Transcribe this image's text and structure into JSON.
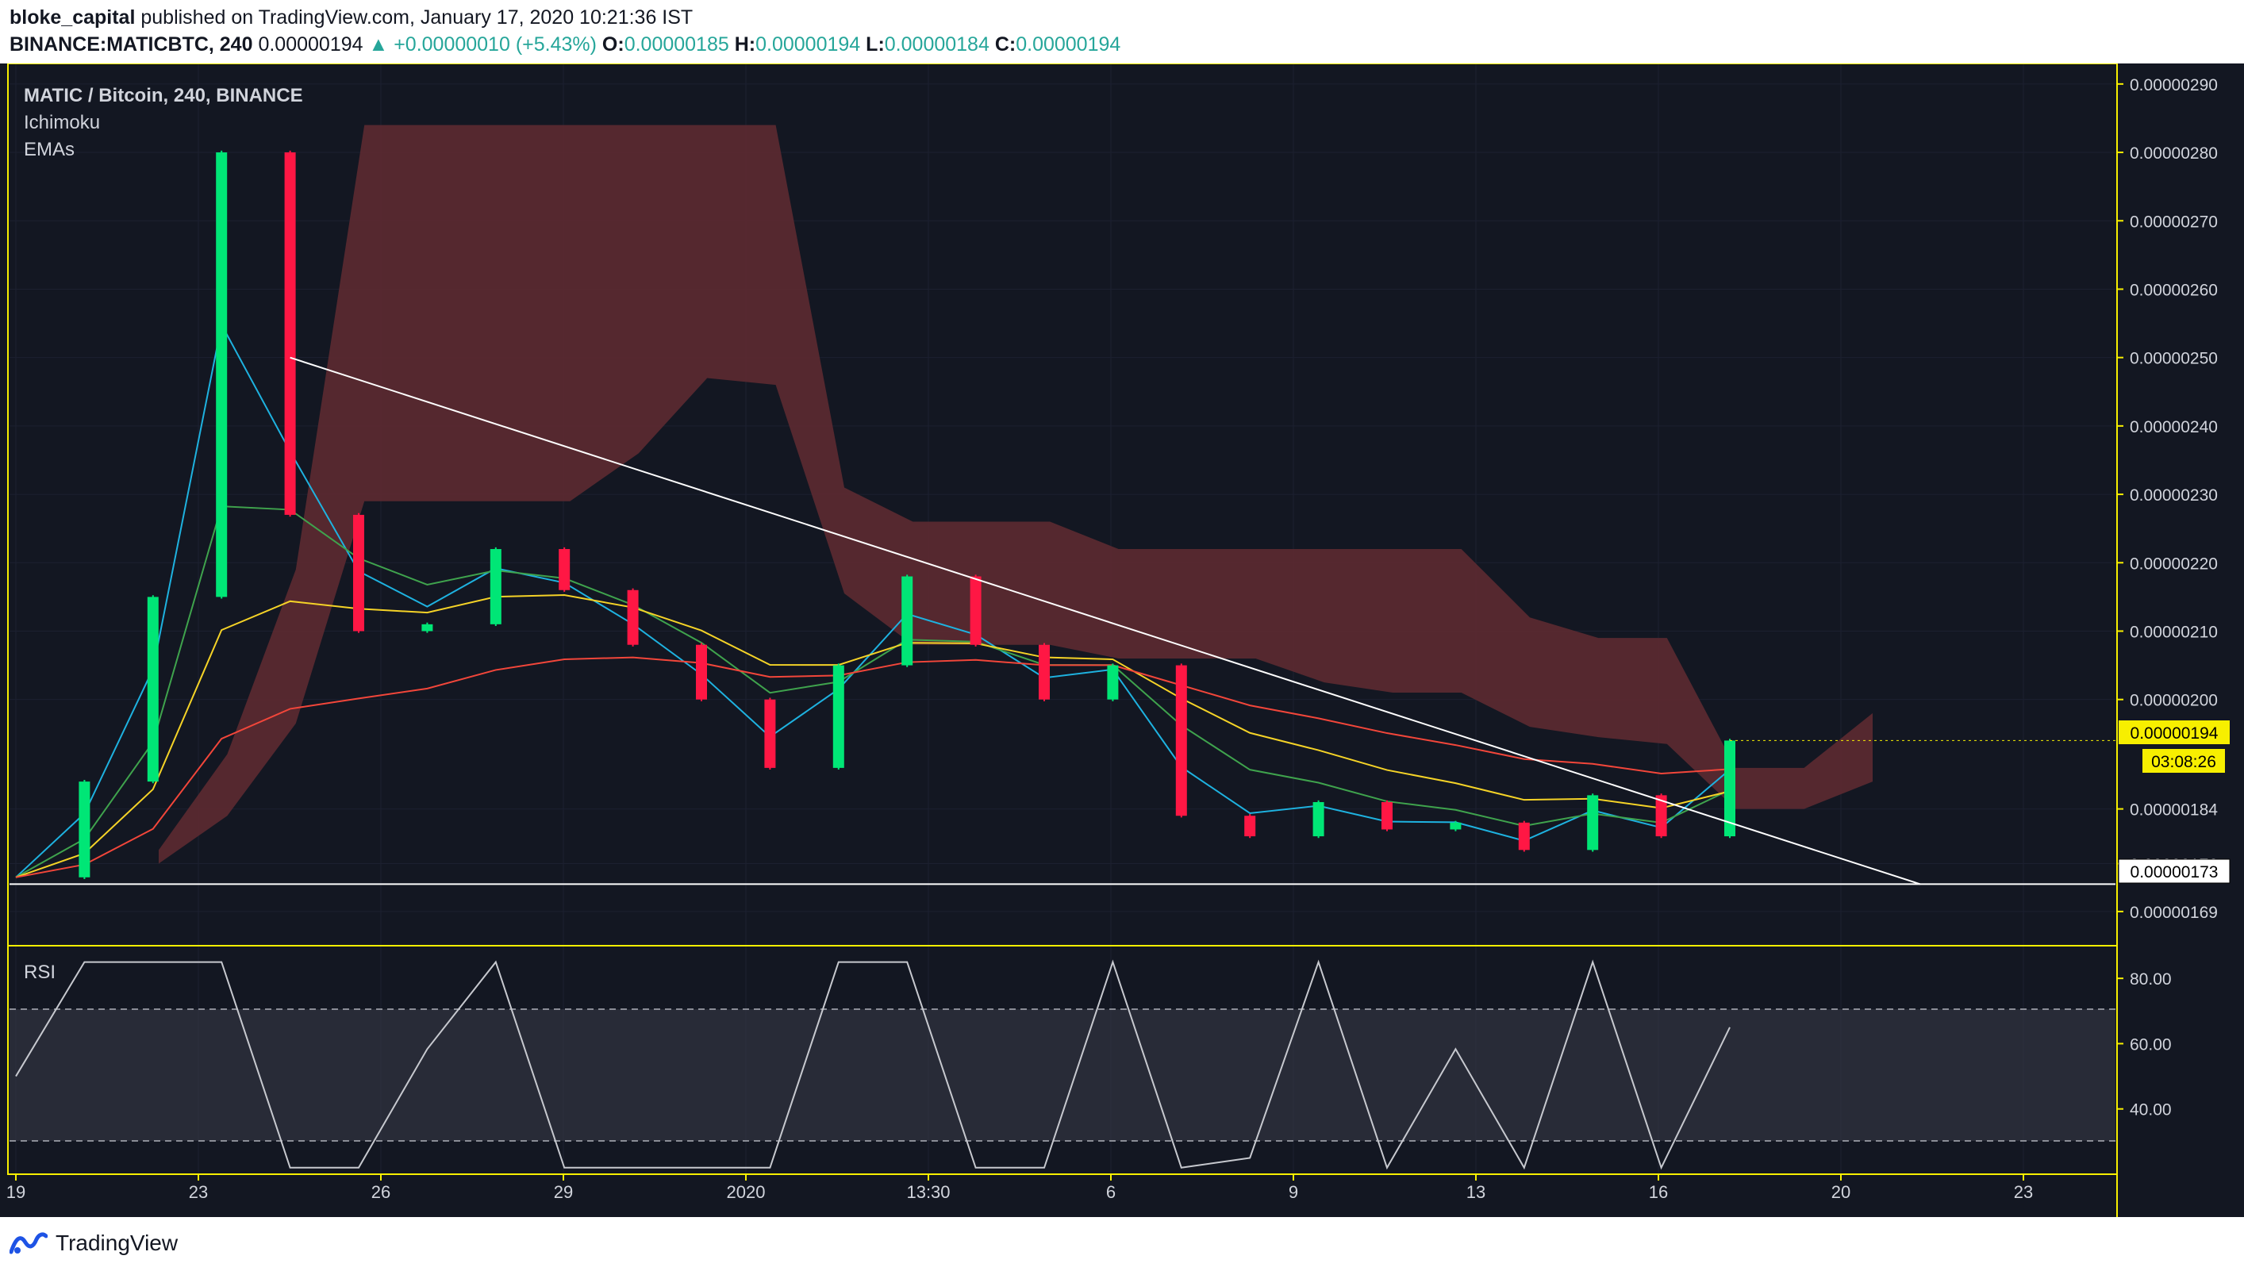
{
  "header": {
    "author": "bloke_capital",
    "published_text": "published on TradingView.com, January 17, 2020 10:21:36 IST",
    "symbol": "BINANCE:MATICBTC, 240",
    "last": "0.00000194",
    "change": "▲ +0.00000010 (+5.43%)",
    "o_label": "O:",
    "o_value": "0.00000185",
    "h_label": "H:",
    "h_value": "0.00000194",
    "l_label": "L:",
    "l_value": "0.00000184",
    "c_label": "C:",
    "c_value": "0.00000194"
  },
  "legend": {
    "title": "MATIC / Bitcoin, 240, BINANCE",
    "ichimoku": "Ichimoku",
    "emas": "EMAs",
    "rsi": "RSI"
  },
  "price_scale": {
    "ticks": [
      "0.00000290",
      "0.00000280",
      "0.00000270",
      "0.00000260",
      "0.00000250",
      "0.00000240",
      "0.00000230",
      "0.00000220",
      "0.00000210",
      "0.00000200",
      "0.00000184",
      "0.00000176",
      "0.00000169"
    ],
    "current_price": "0.00000194",
    "countdown": "03:08:26",
    "support_label": "0.00000173"
  },
  "rsi_scale": {
    "ticks": [
      "80.00",
      "60.00",
      "40.00"
    ],
    "upper_band": 70,
    "lower_band": 30
  },
  "time_axis": [
    "19",
    "23",
    "26",
    "29",
    "2020",
    "13:30",
    "6",
    "9",
    "13",
    "16",
    "20",
    "23"
  ],
  "footer": {
    "brand": "TradingView"
  },
  "colors": {
    "background": "#131722",
    "bull": "#00e676",
    "bear": "#ff1744",
    "cloud": "#5d2a31",
    "ema_fast": "#1eb2e0",
    "ema_mid": "#3fa34d",
    "ema_slow": "#f5d327",
    "ema_200": "#f2463a",
    "trendline": "#ffffff",
    "highlight": "#f7ef00"
  },
  "chart_data": {
    "type": "candlestick",
    "title": "MATIC / Bitcoin, 240, BINANCE",
    "interval": "240",
    "x": [
      "19",
      "23",
      "26",
      "29",
      "2020",
      "13:30",
      "6",
      "9",
      "13",
      "16",
      "20",
      "23"
    ],
    "ylim": [
      1.64e-06,
      2.93e-06
    ],
    "y_scale": "linear",
    "price_points": [
      {
        "x": "19",
        "price": 1.74e-06
      },
      {
        "x": "20",
        "price": 1.88e-06
      },
      {
        "x": "21",
        "price": 2.15e-06
      },
      {
        "x": "22",
        "price": 2.8e-06
      },
      {
        "x": "22",
        "price": 2.27e-06
      },
      {
        "x": "23",
        "price": 2.1e-06
      },
      {
        "x": "24",
        "price": 2.11e-06
      },
      {
        "x": "25",
        "price": 2.22e-06
      },
      {
        "x": "26",
        "price": 2.16e-06
      },
      {
        "x": "28",
        "price": 2.08e-06
      },
      {
        "x": "29",
        "price": 2e-06
      },
      {
        "x": "31",
        "price": 1.9e-06
      },
      {
        "x": "2020",
        "price": 2.05e-06
      },
      {
        "x": "2",
        "price": 2.18e-06
      },
      {
        "x": "3",
        "price": 2.08e-06
      },
      {
        "x": "5",
        "price": 2e-06
      },
      {
        "x": "6",
        "price": 2.05e-06
      },
      {
        "x": "7",
        "price": 1.83e-06
      },
      {
        "x": "8",
        "price": 1.8e-06
      },
      {
        "x": "9",
        "price": 1.85e-06
      },
      {
        "x": "11",
        "price": 1.81e-06
      },
      {
        "x": "13",
        "price": 1.82e-06
      },
      {
        "x": "14",
        "price": 1.78e-06
      },
      {
        "x": "15",
        "price": 1.86e-06
      },
      {
        "x": "16",
        "price": 1.8e-06
      },
      {
        "x": "17",
        "price": 1.94e-06
      }
    ],
    "support_level": 1.73e-06,
    "last_price": 1.94e-06,
    "rsi": {
      "ylim": [
        20,
        90
      ],
      "bands": [
        30,
        70
      ],
      "last": 65
    }
  }
}
